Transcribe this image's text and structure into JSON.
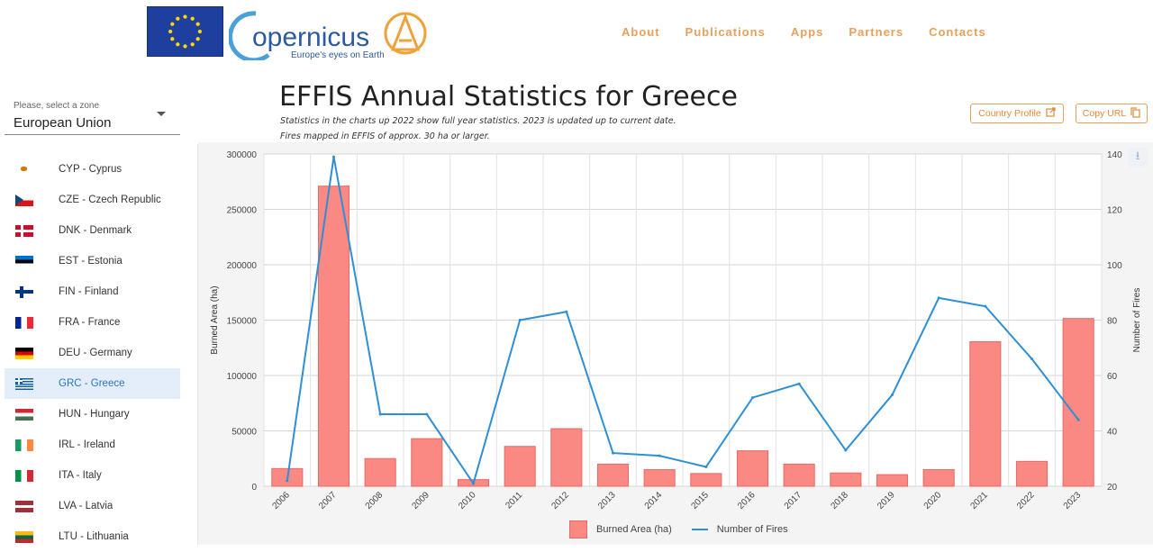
{
  "nav": {
    "items": [
      "About",
      "Publications",
      "Apps",
      "Partners",
      "Contacts"
    ]
  },
  "logo": {
    "name": "opernicus",
    "tagline": "Europe's eyes on Earth"
  },
  "zone": {
    "label": "Please, select a zone",
    "value": "European Union"
  },
  "countries": [
    {
      "label": "CYP - Cyprus",
      "flag": "cyprus"
    },
    {
      "label": "CZE - Czech Republic",
      "flag": "czech"
    },
    {
      "label": "DNK - Denmark",
      "flag": "denmark"
    },
    {
      "label": "EST - Estonia",
      "flag": "estonia"
    },
    {
      "label": "FIN - Finland",
      "flag": "finland"
    },
    {
      "label": "FRA - France",
      "flag": "france"
    },
    {
      "label": "DEU - Germany",
      "flag": "germany"
    },
    {
      "label": "GRC - Greece",
      "flag": "greece",
      "active": true
    },
    {
      "label": "HUN - Hungary",
      "flag": "hungary"
    },
    {
      "label": "IRL - Ireland",
      "flag": "ireland"
    },
    {
      "label": "ITA - Italy",
      "flag": "italy"
    },
    {
      "label": "LVA - Latvia",
      "flag": "latvia"
    },
    {
      "label": "LTU - Lithuania",
      "flag": "lithuania"
    }
  ],
  "page": {
    "title": "EFFIS Annual Statistics for Greece",
    "subtitle1": "Statistics in the charts up 2022 show full year statistics. 2023 is updated up to current date.",
    "subtitle2": "Fires mapped in EFFIS of approx. 30 ha or larger.",
    "country_profile": "Country Profile",
    "copy_url": "Copy URL"
  },
  "colors": {
    "accent": "#e9a05a",
    "bar": "#fa8883",
    "line": "#2d8fd6",
    "active": "#2b74c4"
  },
  "chart_data": {
    "type": "bar",
    "categories": [
      "2006",
      "2007",
      "2008",
      "2009",
      "2010",
      "2011",
      "2012",
      "2013",
      "2014",
      "2015",
      "2016",
      "2017",
      "2018",
      "2019",
      "2020",
      "2021",
      "2022",
      "2023"
    ],
    "series": [
      {
        "name": "Burned Area (ha)",
        "type": "bar",
        "axis": "left",
        "values": [
          16000,
          271000,
          25000,
          43000,
          6000,
          36000,
          52000,
          20000,
          15000,
          11500,
          32000,
          20000,
          12000,
          10500,
          15000,
          130500,
          22500,
          151500
        ]
      },
      {
        "name": "Number of Fires",
        "type": "line",
        "axis": "right",
        "values": [
          22,
          139,
          46,
          46,
          21,
          80,
          83,
          32,
          31,
          27,
          52,
          57,
          33,
          53,
          88,
          85,
          66,
          44
        ]
      }
    ],
    "ylabel": "Burned Area (ha)",
    "y2label": "Number of Fires",
    "ylim": [
      0,
      300000
    ],
    "y2lim": [
      20,
      140
    ],
    "yticks": [
      0,
      50000,
      100000,
      150000,
      200000,
      250000,
      300000
    ],
    "y2ticks": [
      20,
      40,
      60,
      80,
      100,
      120,
      140
    ],
    "grid": true,
    "legend": "bottom"
  }
}
